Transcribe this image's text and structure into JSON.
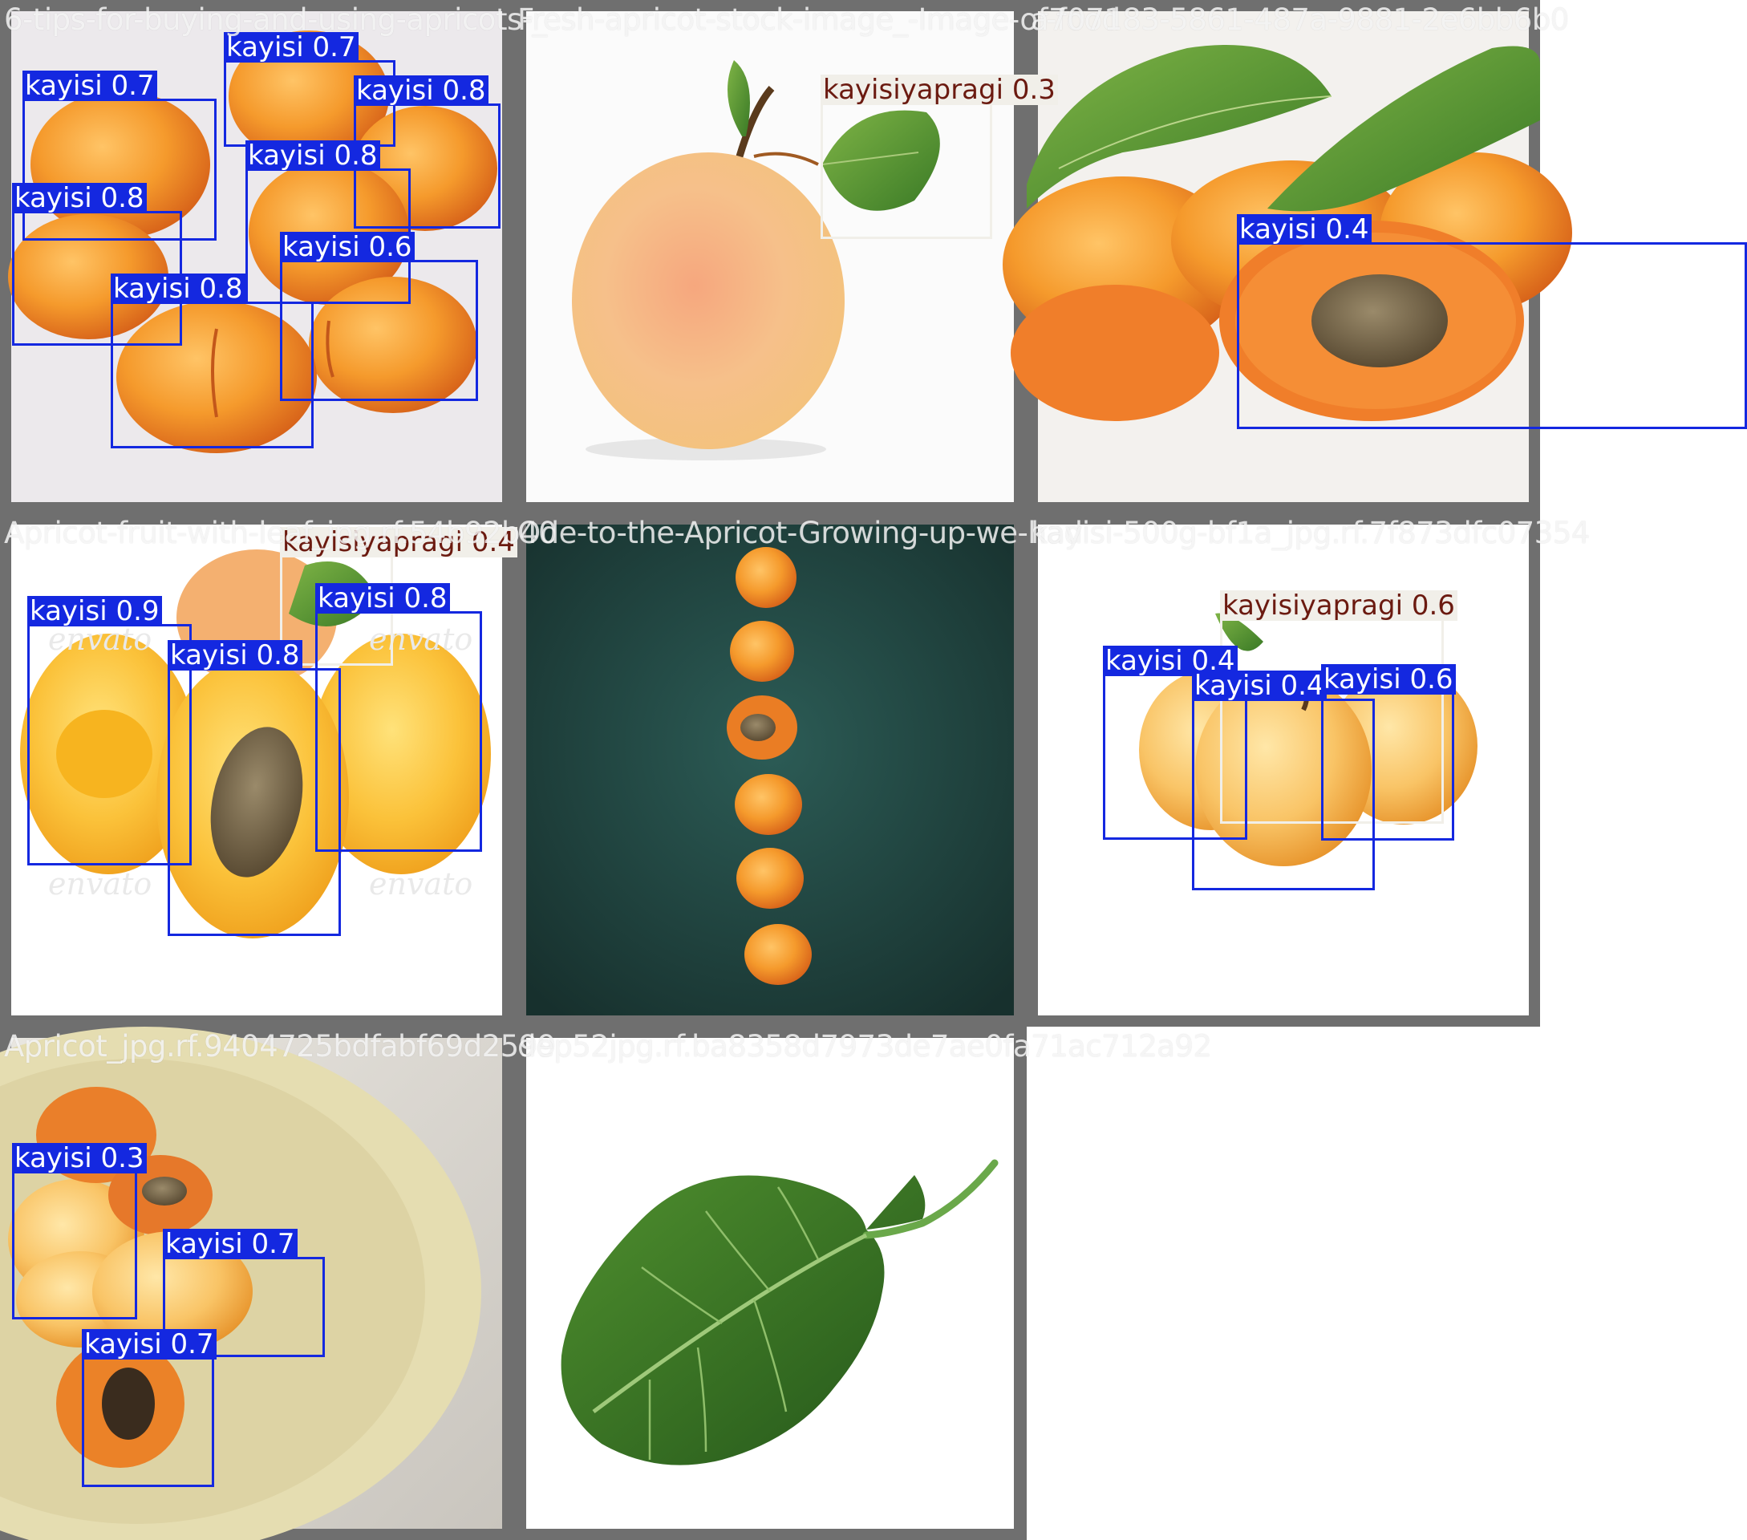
{
  "colors": {
    "kayisi": "#1428e0",
    "kayisiyapragi": "#f1efe9",
    "leaf_label_text": "#6b1a10",
    "frame": "#6f6f6f"
  },
  "tiles": [
    {
      "filename": "6-tips-for-buying-and-using-apricots-_",
      "detections": [
        {
          "label": "kayisi 0.7"
        },
        {
          "label": "kayisi 0.7"
        },
        {
          "label": "kayisi 0.8"
        },
        {
          "label": "kayisi 0.8"
        },
        {
          "label": "kayisi 0.8"
        },
        {
          "label": "kayisi 0.6"
        },
        {
          "label": "kayisi 0.8"
        }
      ]
    },
    {
      "filename": "Fresh-apricot-stock-image_-Image-of-food",
      "detections": [
        {
          "label": "kayisiyapragi 0.3"
        }
      ]
    },
    {
      "filename": "a707183-5861-487a-9881-2e6bb6b0",
      "detections": [
        {
          "label": "kayisi 0.4"
        }
      ]
    },
    {
      "filename": "Apricot-fruit-with-leaf_jpg.rf.54b92b40",
      "detections": [
        {
          "label": "kayisiyapragi 0.4"
        },
        {
          "label": "kayisi 0.9"
        },
        {
          "label": "kayisi 0.8"
        },
        {
          "label": "kayisi 0.8"
        }
      ]
    },
    {
      "filename": "Ode-to-the-Apricot-Growing-up-we-had",
      "detections": []
    },
    {
      "filename": "kayisi-500g-bf1a_jpg.rf.7f873dfc07354",
      "detections": [
        {
          "label": "kayisiyapragi 0.6"
        },
        {
          "label": "kayisi 0.4"
        },
        {
          "label": "kayisi 0.4"
        },
        {
          "label": "kayisi 0.6"
        }
      ]
    },
    {
      "filename": "Apricot_jpg.rf.9404725bdfabf69d2599",
      "detections": [
        {
          "label": "kayisi 0.3"
        },
        {
          "label": "kayisi 0.7"
        },
        {
          "label": "kayisi 0.7"
        }
      ]
    },
    {
      "filename": "dep52jpg.rf.ba8358d7973de7ae0fa71ac712a92",
      "detections": []
    }
  ]
}
